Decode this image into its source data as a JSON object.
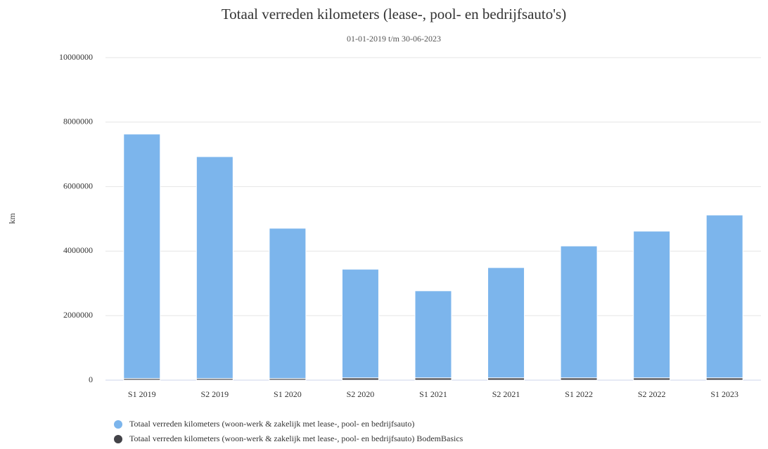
{
  "chart_data": {
    "type": "stacked_bar",
    "title": "Totaal verreden kilometers (lease-, pool- en bedrijfsauto's)",
    "subtitle": "01-01-2019 t/m 30-06-2023",
    "y_label": "km",
    "categories": [
      "S1 2019",
      "S2 2019",
      "S1 2020",
      "S2 2020",
      "S1 2021",
      "S2 2021",
      "S1 2022",
      "S2 2022",
      "S1 2023"
    ],
    "series": [
      {
        "name": "Totaal verreden kilometers (woon-werk & zakelijk met lease-, pool- en bedrijfsauto)",
        "color": "#7cb5ec",
        "values": [
          7580000,
          6880000,
          4660000,
          3370000,
          2700000,
          3420000,
          4090000,
          4550000,
          5050000
        ]
      },
      {
        "name": "Totaal verreden kilometers (woon-werk & zakelijk met lease-, pool- en bedrijfsauto) BodemBasics",
        "color": "#434348",
        "values": [
          50000,
          50000,
          50000,
          70000,
          70000,
          70000,
          70000,
          70000,
          70000
        ]
      }
    ],
    "ylim": [
      0,
      10000000
    ],
    "yticks": [
      0,
      2000000,
      4000000,
      6000000,
      8000000,
      10000000
    ],
    "grid": true
  }
}
